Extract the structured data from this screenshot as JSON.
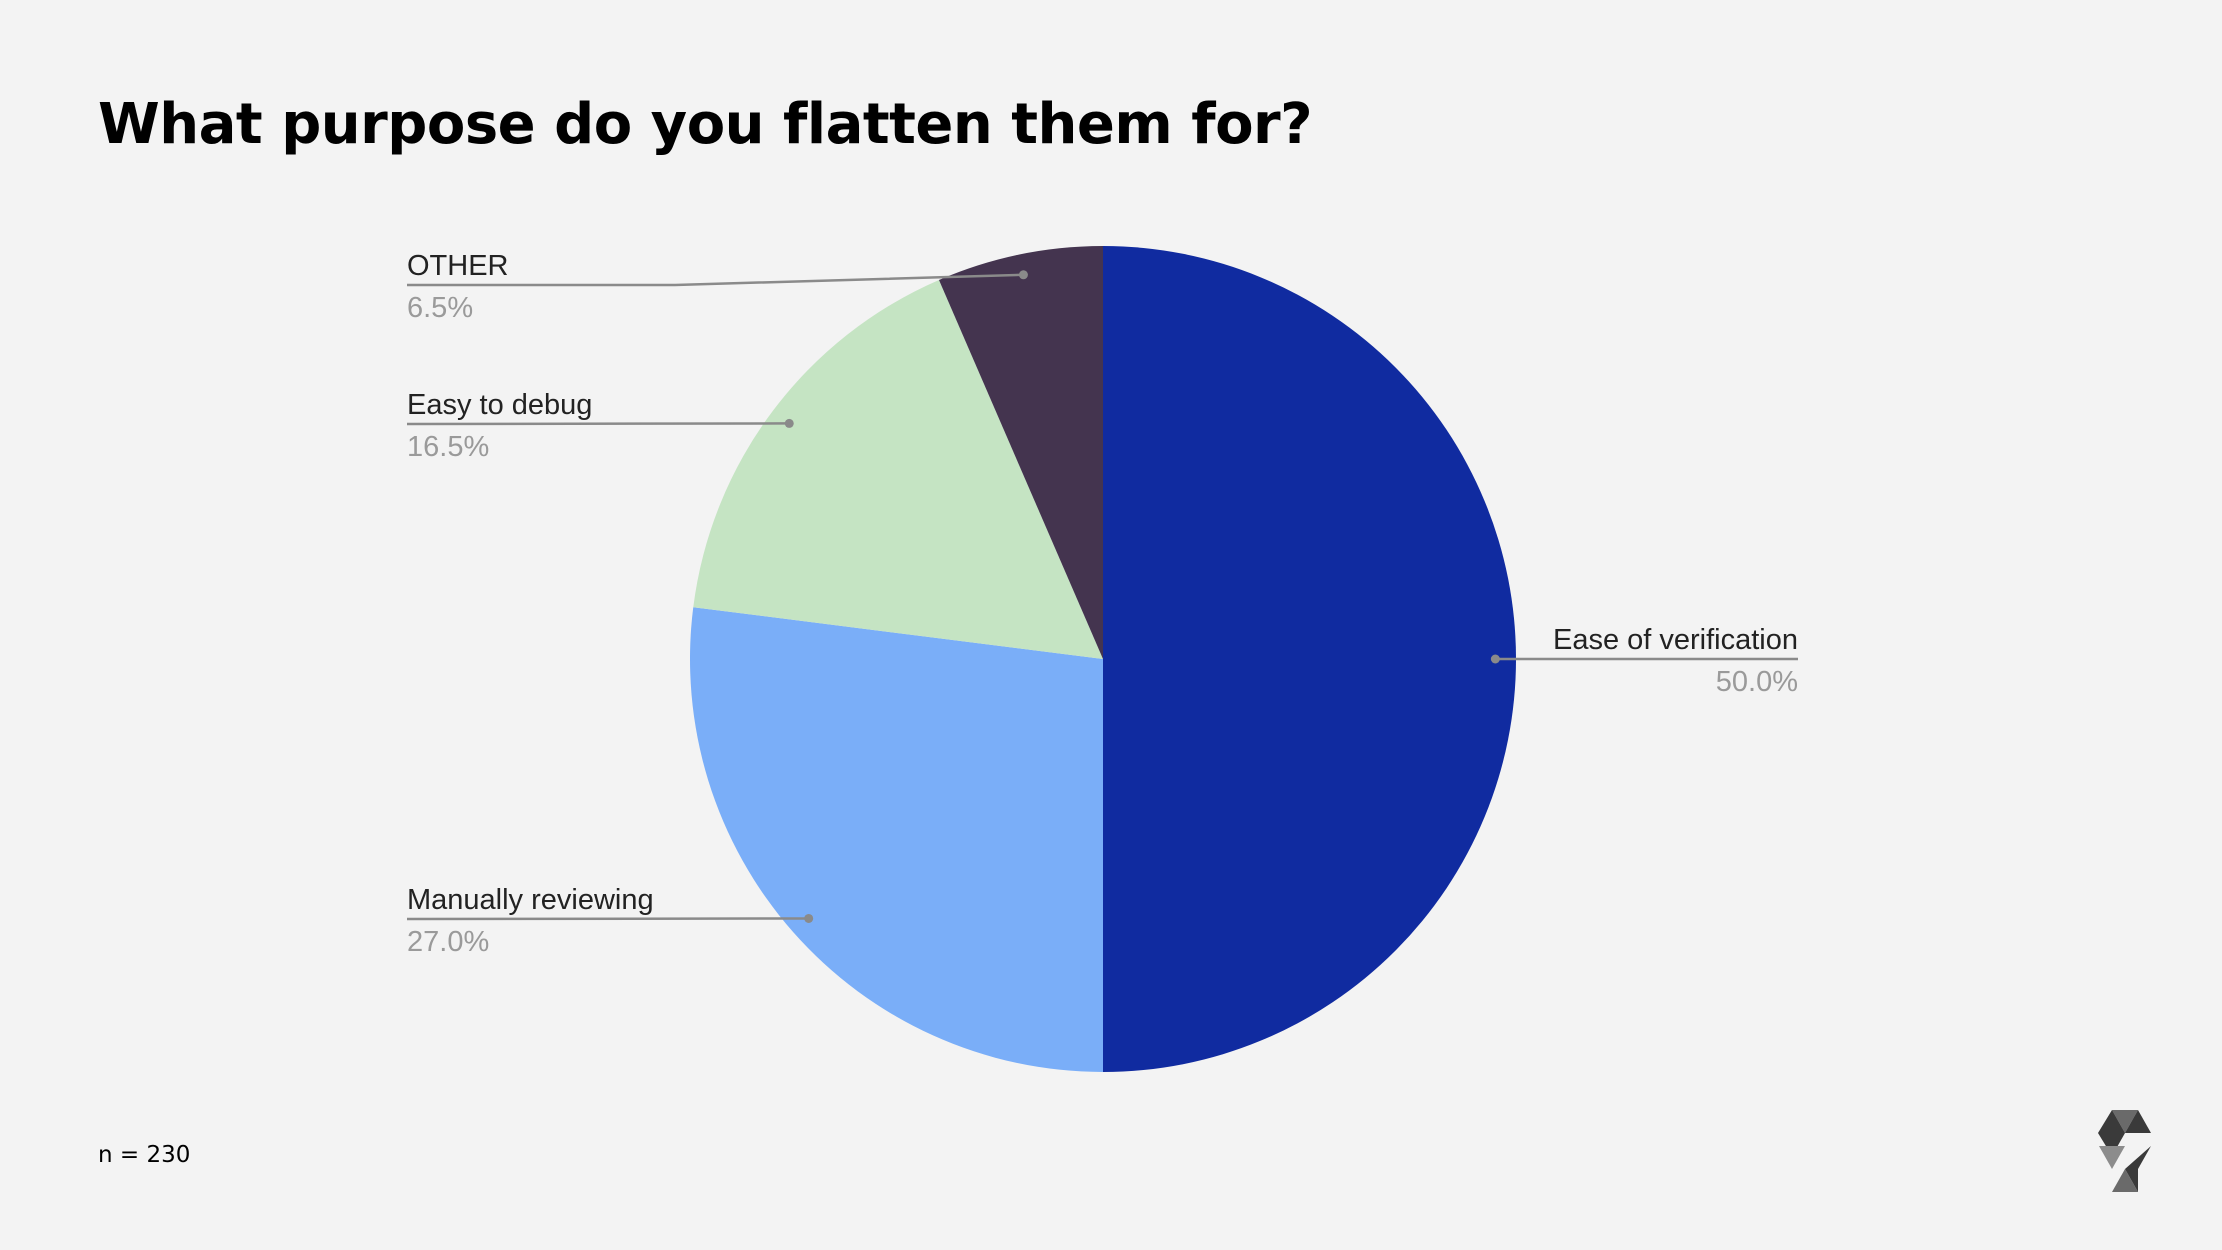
{
  "page": {
    "title": "What purpose do you flatten them for?",
    "footnote": "n = 230"
  },
  "chart_data": {
    "type": "pie",
    "title": "What purpose do you flatten them for?",
    "start_angle_deg": 0,
    "direction": "clockwise",
    "slices": [
      {
        "name": "Ease of verification",
        "value": 50.0,
        "label": "50.0%",
        "color": "#102ba0"
      },
      {
        "name": "Manually reviewing",
        "value": 27.0,
        "label": "27.0%",
        "color": "#7aaef8"
      },
      {
        "name": "Easy to debug",
        "value": 16.5,
        "label": "16.5%",
        "color": "#c5e4c3"
      },
      {
        "name": "OTHER",
        "value": 6.5,
        "label": "6.5%",
        "color": "#44344f"
      }
    ],
    "legend": "callout-labels",
    "leader_line_color": "#8a8a8a"
  },
  "logo": {
    "icon": "solidity-logo-icon",
    "colors": [
      "#3a3a3a",
      "#6a6a6a",
      "#8c8c8c"
    ]
  }
}
